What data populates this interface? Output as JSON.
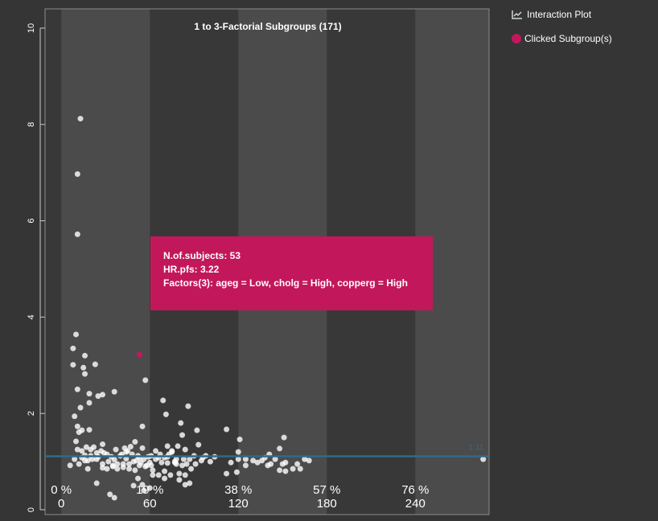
{
  "legend": {
    "interaction_plot": "Interaction Plot",
    "clicked_subgroups": "Clicked Subgroup(s)"
  },
  "tooltip": {
    "subjects": "N.of.subjects: 53",
    "hr": "HR.pfs: 3.22",
    "factors": "Factors(3): ageg = Low, cholg = High, copperg = High"
  },
  "colors": {
    "background": "#353535",
    "band_light": "#4b4b4b",
    "band_dark": "#383838",
    "reference_line": "#2e6b8a",
    "highlight": "#c2185b",
    "point": "#ffffff"
  },
  "chart_data": {
    "type": "scatter",
    "title": "1 to 3-Factorial Subgroups (171)",
    "xlabel": "",
    "ylabel": "",
    "xlim": [
      -11,
      290
    ],
    "ylim": [
      -0.1,
      10.4
    ],
    "x_ticks": [
      0,
      60,
      120,
      180,
      240
    ],
    "x_tick_labels": [
      "0",
      "60",
      "120",
      "180",
      "240"
    ],
    "percent_labels": [
      "0 %",
      "19 %",
      "38 %",
      "57 %",
      "76 %"
    ],
    "y_ticks": [
      0,
      2,
      4,
      6,
      8,
      10
    ],
    "y_tick_labels": [
      "0",
      "2",
      "4",
      "6",
      "8",
      "10"
    ],
    "bands": [
      [
        0,
        60
      ],
      [
        120,
        180
      ],
      [
        240,
        290
      ]
    ],
    "reference_line": {
      "y": 1.11,
      "label": "1.11"
    },
    "highlight": {
      "x": 53,
      "y": 3.22
    },
    "points": [
      [
        13,
        8.12
      ],
      [
        11,
        6.97
      ],
      [
        11,
        5.72
      ],
      [
        10,
        3.64
      ],
      [
        8,
        3.35
      ],
      [
        16,
        3.2
      ],
      [
        15,
        2.95
      ],
      [
        8,
        3.01
      ],
      [
        23,
        3.02
      ],
      [
        16,
        2.82
      ],
      [
        36,
        2.45
      ],
      [
        19,
        2.41
      ],
      [
        25,
        2.36
      ],
      [
        28,
        2.39
      ],
      [
        11,
        2.5
      ],
      [
        13,
        2.12
      ],
      [
        19,
        2.22
      ],
      [
        11,
        1.73
      ],
      [
        9,
        1.94
      ],
      [
        12,
        1.61
      ],
      [
        14,
        1.65
      ],
      [
        19,
        1.66
      ],
      [
        57,
        2.69
      ],
      [
        69,
        2.27
      ],
      [
        71,
        1.98
      ],
      [
        86,
        2.15
      ],
      [
        81,
        1.8
      ],
      [
        82,
        1.55
      ],
      [
        92,
        1.65
      ],
      [
        55,
        1.73
      ],
      [
        10,
        1.42
      ],
      [
        17,
        1.3
      ],
      [
        22,
        1.3
      ],
      [
        28,
        1.36
      ],
      [
        20,
        1.25
      ],
      [
        16,
        1.13
      ],
      [
        24,
        1.18
      ],
      [
        29,
        1.18
      ],
      [
        47,
        1.31
      ],
      [
        50,
        1.41
      ],
      [
        43,
        1.28
      ],
      [
        44,
        1.2
      ],
      [
        55,
        1.28
      ],
      [
        14,
        1.08
      ],
      [
        18,
        1.02
      ],
      [
        21,
        1.05
      ],
      [
        25,
        1.1
      ],
      [
        32,
        1.0
      ],
      [
        36,
        1.04
      ],
      [
        40,
        1.12
      ],
      [
        44,
        1.06
      ],
      [
        48,
        1.15
      ],
      [
        51,
        1.02
      ],
      [
        60,
        0.98
      ],
      [
        64,
        1.05
      ],
      [
        67,
        1.15
      ],
      [
        70,
        1.08
      ],
      [
        73,
        1.15
      ],
      [
        75,
        1.2
      ],
      [
        79,
        1.32
      ],
      [
        72,
        1.32
      ],
      [
        84,
        1.25
      ],
      [
        87,
        1.05
      ],
      [
        83,
        1.05
      ],
      [
        95,
        1.02
      ],
      [
        101,
        1.0
      ],
      [
        6,
        0.92
      ],
      [
        12,
        0.95
      ],
      [
        18,
        0.85
      ],
      [
        28,
        0.87
      ],
      [
        35,
        0.92
      ],
      [
        38,
        0.95
      ],
      [
        42,
        0.95
      ],
      [
        46,
        0.95
      ],
      [
        53,
        0.92
      ],
      [
        57,
        0.9
      ],
      [
        61,
        0.92
      ],
      [
        68,
        0.98
      ],
      [
        72,
        0.97
      ],
      [
        77,
        0.98
      ],
      [
        78,
        0.95
      ],
      [
        91,
        0.95
      ],
      [
        80,
        0.75
      ],
      [
        84,
        0.72
      ],
      [
        87,
        0.55
      ],
      [
        52,
        0.65
      ],
      [
        49,
        0.5
      ],
      [
        55,
        0.52
      ],
      [
        60,
        0.45
      ],
      [
        33,
        0.32
      ],
      [
        36,
        0.25
      ],
      [
        24,
        0.55
      ],
      [
        56,
        0.4
      ],
      [
        62,
        0.72
      ],
      [
        66,
        0.72
      ],
      [
        70,
        0.8
      ],
      [
        74,
        0.72
      ],
      [
        80,
        0.62
      ],
      [
        84,
        0.52
      ],
      [
        16,
        1.02
      ],
      [
        120,
        1.05
      ],
      [
        130,
        1.02
      ],
      [
        136,
        1.02
      ],
      [
        138,
        1.08
      ],
      [
        141,
        1.15
      ],
      [
        148,
        1.27
      ],
      [
        151,
        1.5
      ],
      [
        148,
        0.82
      ],
      [
        152,
        0.8
      ],
      [
        157,
        0.85
      ],
      [
        162,
        0.85
      ],
      [
        165,
        1.05
      ],
      [
        152,
        0.98
      ],
      [
        142,
        0.95
      ],
      [
        125,
        0.92
      ],
      [
        120,
        1.2
      ],
      [
        121,
        1.46
      ],
      [
        119,
        0.78
      ],
      [
        112,
        0.75
      ],
      [
        112,
        1.67
      ],
      [
        70,
        0.65
      ],
      [
        62,
        0.82
      ],
      [
        58,
        0.92
      ],
      [
        52,
        1.12
      ],
      [
        54,
        0.98
      ],
      [
        77,
        1.0
      ],
      [
        75,
        1.22
      ],
      [
        72,
        1.1
      ],
      [
        88,
        0.85
      ],
      [
        93,
        1.35
      ],
      [
        98,
        1.12
      ],
      [
        64,
        1.22
      ],
      [
        59,
        1.1
      ],
      [
        56,
        1.05
      ],
      [
        49,
        1.0
      ],
      [
        45,
        1.22
      ],
      [
        41,
        1.15
      ],
      [
        37,
        1.25
      ],
      [
        34,
        1.1
      ],
      [
        31,
        1.15
      ],
      [
        27,
        1.22
      ],
      [
        24,
        1.05
      ],
      [
        20,
        1.12
      ],
      [
        14,
        1.22
      ],
      [
        11,
        1.25
      ],
      [
        9,
        1.05
      ],
      [
        28,
        0.95
      ],
      [
        31,
        0.85
      ],
      [
        35,
        0.9
      ],
      [
        38,
        0.85
      ],
      [
        42,
        0.88
      ],
      [
        46,
        0.85
      ],
      [
        50,
        0.82
      ],
      [
        53,
        1.08
      ],
      [
        61,
        1.12
      ],
      [
        66,
        1.08
      ],
      [
        78,
        1.05
      ],
      [
        82,
        0.92
      ],
      [
        85,
        0.95
      ],
      [
        90,
        1.12
      ],
      [
        96,
        1.08
      ],
      [
        104,
        1.1
      ],
      [
        115,
        0.98
      ],
      [
        125,
        1.05
      ],
      [
        133,
        0.98
      ],
      [
        140,
        0.92
      ],
      [
        145,
        1.05
      ],
      [
        150,
        0.95
      ],
      [
        160,
        0.95
      ],
      [
        168,
        1.02
      ],
      [
        286,
        1.05
      ]
    ]
  }
}
